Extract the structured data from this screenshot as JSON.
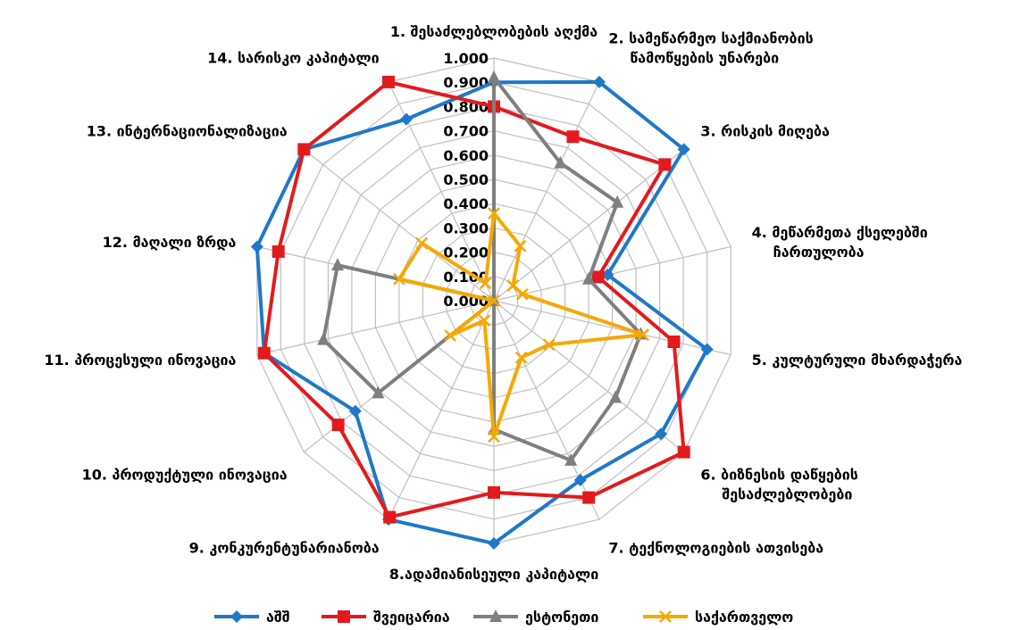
{
  "chart_data": {
    "type": "radar",
    "categories": [
      [
        "1. შესაძლებლობების აღქმა"
      ],
      [
        "2. სამეწარმეო საქმიანობის",
        "წამოწყების უნარები"
      ],
      [
        "3. რისკის  მიღება"
      ],
      [
        "4. მეწარმეთა ქსელებში",
        "ჩართულობა"
      ],
      [
        "5. კულტურული  მხარდაჭერა"
      ],
      [
        "6. ბიზნესის დაწყების",
        "შესაძლებლობები"
      ],
      [
        "7. ტექნოლოგიების ათვისება"
      ],
      [
        "8.ადამიანისეული კაპიტალი"
      ],
      [
        "9. კონკურენტუნარიანობა"
      ],
      [
        "10. პროდუქტული  ინოვაცია"
      ],
      [
        "11. პროცესული ინოვაცია"
      ],
      [
        "12. მაღალი ზრდა"
      ],
      [
        "13. ინტერნაციონალიზაცია"
      ],
      [
        "14. სარისკო კაპიტალი"
      ]
    ],
    "rlim": [
      0,
      1
    ],
    "ticks": [
      "0.000",
      "0.100",
      "0.200",
      "0.300",
      "0.400",
      "0.500",
      "0.600",
      "0.700",
      "0.800",
      "0.900",
      "1.000"
    ],
    "grid": true,
    "legend_position": "bottom",
    "series": [
      {
        "name": "აშშ",
        "color": "#1f78c8",
        "marker": "diamond",
        "values": [
          0.9,
          1.0,
          1.0,
          0.48,
          0.9,
          0.88,
          0.82,
          1.0,
          1.0,
          0.73,
          0.97,
          1.0,
          1.0,
          0.83
        ]
      },
      {
        "name": "შვეიცარია",
        "color": "#e31a1c",
        "marker": "square",
        "values": [
          0.8,
          0.75,
          0.9,
          0.44,
          0.76,
          1.0,
          0.9,
          0.79,
          0.99,
          0.82,
          0.97,
          0.91,
          1.0,
          1.0
        ]
      },
      {
        "name": "ესტონეთი",
        "color": "#7f7f7f",
        "marker": "triangle",
        "values": [
          0.92,
          0.63,
          0.65,
          0.4,
          0.62,
          0.64,
          0.73,
          0.53,
          0.0,
          0.61,
          0.72,
          0.66,
          0.0,
          0.0
        ]
      },
      {
        "name": "საქართველო",
        "color": "#f6a800",
        "marker": "x",
        "values": [
          0.36,
          0.25,
          0.1,
          0.12,
          0.63,
          0.29,
          0.26,
          0.56,
          0.09,
          0.23,
          0.0,
          0.4,
          0.38,
          0.08
        ]
      }
    ]
  }
}
